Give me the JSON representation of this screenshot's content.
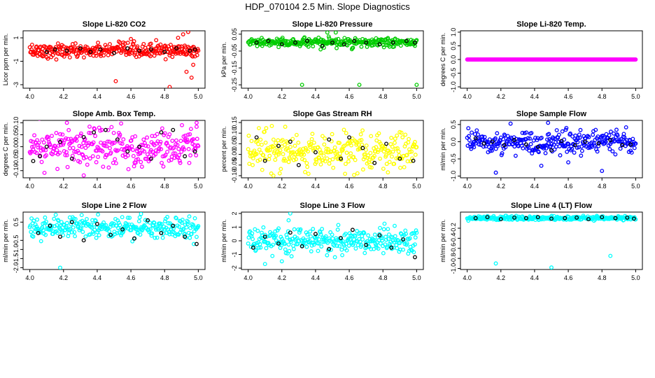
{
  "title": "HDP_070104  2.5 Min. Slope Diagnostics",
  "colors": {
    "highlight": "#000000",
    "frame": "#000000"
  },
  "chart_data": [
    {
      "type": "scatter",
      "title": "Slope Li-820 CO2",
      "ylabel": "Licor ppm per min.",
      "xlabel": "",
      "xlim": [
        4.0,
        5.0
      ],
      "ylim": [
        -3.3,
        1.6
      ],
      "xticks": [
        "4.0",
        "4.2",
        "4.4",
        "4.6",
        "4.8",
        "5.0"
      ],
      "yticks": [
        {
          "v": 1,
          "label": "1"
        },
        {
          "v": -1,
          "label": "-1"
        },
        {
          "v": -3,
          "label": "-3"
        }
      ],
      "series_color": "#ff0000",
      "n_points": 300,
      "center": -0.1,
      "spread": 0.3,
      "outliers": [
        [
          4.51,
          -2.7
        ],
        [
          4.83,
          -3.2
        ],
        [
          4.96,
          -2.4
        ],
        [
          4.93,
          -1.9
        ],
        [
          4.91,
          1.3
        ],
        [
          4.94,
          1.5
        ],
        [
          4.88,
          1.0
        ],
        [
          4.97,
          -1.3
        ],
        [
          4.6,
          0.9
        ],
        [
          4.75,
          0.8
        ]
      ],
      "black_points": [
        [
          4.1,
          -0.2
        ],
        [
          4.15,
          0.0
        ],
        [
          4.22,
          -0.1
        ],
        [
          4.3,
          0.1
        ],
        [
          4.36,
          -0.2
        ],
        [
          4.42,
          0.0
        ],
        [
          4.5,
          -0.3
        ],
        [
          4.58,
          0.1
        ],
        [
          4.65,
          -0.1
        ],
        [
          4.72,
          0.0
        ],
        [
          4.8,
          -0.2
        ],
        [
          4.87,
          0.1
        ],
        [
          4.95,
          -0.1
        ],
        [
          4.98,
          0.0
        ]
      ]
    },
    {
      "type": "scatter",
      "title": "Slope Li-820 Pressure",
      "ylabel": "kPa per min.",
      "xlabel": "",
      "xlim": [
        4.0,
        5.0
      ],
      "ylim": [
        -0.27,
        0.07
      ],
      "xticks": [
        "4.0",
        "4.2",
        "4.4",
        "4.6",
        "4.8",
        "5.0"
      ],
      "yticks": [
        {
          "v": 0.05,
          "label": "0.05"
        },
        {
          "v": -0.05,
          "label": "-0.05"
        },
        {
          "v": -0.15,
          "label": "-0.15"
        },
        {
          "v": -0.25,
          "label": "-0.25"
        }
      ],
      "series_color": "#00cc00",
      "n_points": 300,
      "center": 0.0,
      "spread": 0.012,
      "outliers": [
        [
          4.32,
          -0.25
        ],
        [
          4.66,
          -0.25
        ],
        [
          5.0,
          -0.25
        ],
        [
          4.47,
          0.06
        ],
        [
          4.52,
          0.06
        ],
        [
          4.43,
          -0.04
        ],
        [
          4.45,
          -0.03
        ]
      ],
      "black_points": [
        [
          4.05,
          0.0
        ],
        [
          4.12,
          0.01
        ],
        [
          4.2,
          -0.01
        ],
        [
          4.28,
          0.0
        ],
        [
          4.35,
          0.01
        ],
        [
          4.44,
          -0.02
        ],
        [
          4.5,
          0.0
        ],
        [
          4.57,
          -0.01
        ],
        [
          4.63,
          0.01
        ],
        [
          4.7,
          0.0
        ],
        [
          4.78,
          -0.01
        ],
        [
          4.86,
          0.0
        ],
        [
          4.94,
          0.01
        ],
        [
          4.99,
          0.0
        ]
      ]
    },
    {
      "type": "scatter",
      "title": "Slope Li-820 Temp.",
      "ylabel": "degrees C per min.",
      "xlabel": "",
      "xlim": [
        4.0,
        5.0
      ],
      "ylim": [
        -1.05,
        1.05
      ],
      "xticks": [
        "4.0",
        "4.2",
        "4.4",
        "4.6",
        "4.8",
        "5.0"
      ],
      "yticks": [
        {
          "v": 1,
          "label": "1.0"
        },
        {
          "v": 0.5,
          "label": "0.5"
        },
        {
          "v": 0,
          "label": "0.0"
        },
        {
          "v": -0.5,
          "label": "-0.5"
        },
        {
          "v": -1,
          "label": "-1.0"
        }
      ],
      "series_color": "#ff00ff",
      "n_points": 300,
      "center": 0.0,
      "spread": 0.0,
      "outliers": [],
      "black_points": []
    },
    {
      "type": "scatter",
      "title": "Slope Amb. Box Temp.",
      "ylabel": "degrees C per min.",
      "xlabel": "",
      "xlim": [
        4.0,
        5.0
      ],
      "ylim": [
        -0.13,
        0.11
      ],
      "xticks": [
        "4.0",
        "4.2",
        "4.4",
        "4.6",
        "4.8",
        "5.0"
      ],
      "yticks": [
        {
          "v": 0.1,
          "label": "0.10"
        },
        {
          "v": 0.05,
          "label": "0.05"
        },
        {
          "v": 0,
          "label": "0.00"
        },
        {
          "v": -0.05,
          "label": "-0.05"
        },
        {
          "v": -0.1,
          "label": "-0.10"
        }
      ],
      "series_color": "#ff00ff",
      "n_points": 300,
      "center": 0.0,
      "spread": 0.04,
      "outliers": [
        [
          4.32,
          -0.12
        ],
        [
          4.22,
          0.1
        ],
        [
          4.99,
          0.1
        ]
      ],
      "black_points": [
        [
          4.02,
          -0.06
        ],
        [
          4.06,
          -0.04
        ],
        [
          4.1,
          0.0
        ],
        [
          4.18,
          0.02
        ],
        [
          4.25,
          -0.05
        ],
        [
          4.32,
          0.04
        ],
        [
          4.38,
          0.06
        ],
        [
          4.45,
          0.07
        ],
        [
          4.52,
          0.03
        ],
        [
          4.58,
          -0.02
        ],
        [
          4.65,
          0.0
        ],
        [
          4.72,
          -0.05
        ],
        [
          4.78,
          0.06
        ],
        [
          4.85,
          0.07
        ],
        [
          4.92,
          -0.04
        ],
        [
          4.98,
          -0.02
        ]
      ]
    },
    {
      "type": "scatter",
      "title": "Slope Gas Stream RH",
      "ylabel": "percent per min.",
      "xlabel": "",
      "xlim": [
        4.0,
        5.0
      ],
      "ylim": [
        -0.11,
        0.16
      ],
      "xticks": [
        "4.0",
        "4.2",
        "4.4",
        "4.6",
        "4.8",
        "5.0"
      ],
      "yticks": [
        {
          "v": 0.15,
          "label": "0.15"
        },
        {
          "v": 0.1,
          "label": "0.10"
        },
        {
          "v": 0.05,
          "label": "0.05"
        },
        {
          "v": 0,
          "label": "0.00"
        },
        {
          "v": -0.05,
          "label": "-0.05"
        },
        {
          "v": -0.1,
          "label": "-0.10"
        }
      ],
      "series_color": "#ffff00",
      "n_points": 300,
      "center": 0.01,
      "spread": 0.045,
      "outliers": [
        [
          4.22,
          0.13
        ],
        [
          4.15,
          -0.1
        ]
      ],
      "black_points": [
        [
          4.05,
          0.08
        ],
        [
          4.1,
          -0.03
        ],
        [
          4.18,
          0.04
        ],
        [
          4.25,
          0.06
        ],
        [
          4.3,
          -0.05
        ],
        [
          4.4,
          0.01
        ],
        [
          4.48,
          0.07
        ],
        [
          4.55,
          -0.02
        ],
        [
          4.6,
          0.08
        ],
        [
          4.68,
          0.03
        ],
        [
          4.75,
          -0.04
        ],
        [
          4.82,
          0.05
        ],
        [
          4.9,
          -0.02
        ],
        [
          4.98,
          -0.03
        ]
      ]
    },
    {
      "type": "scatter",
      "title": "Slope Sample Flow",
      "ylabel": "ml/min per min.",
      "xlabel": "",
      "xlim": [
        4.0,
        5.0
      ],
      "ylim": [
        -1.05,
        0.62
      ],
      "xticks": [
        "4.0",
        "4.2",
        "4.4",
        "4.6",
        "4.8",
        "5.0"
      ],
      "yticks": [
        {
          "v": 0.5,
          "label": "0.5"
        },
        {
          "v": 0,
          "label": "0.0"
        },
        {
          "v": -0.5,
          "label": "-0.5"
        },
        {
          "v": -1,
          "label": "-1.0"
        }
      ],
      "series_color": "#0000ff",
      "n_points": 300,
      "center": 0.0,
      "spread": 0.18,
      "outliers": [
        [
          4.48,
          0.55
        ],
        [
          4.17,
          -0.9
        ],
        [
          4.44,
          -0.7
        ],
        [
          4.8,
          -0.85
        ],
        [
          4.6,
          -0.6
        ]
      ],
      "black_points": [
        [
          4.05,
          0.1
        ],
        [
          4.1,
          -0.05
        ],
        [
          4.15,
          0.0
        ],
        [
          4.22,
          -0.1
        ],
        [
          4.28,
          0.05
        ],
        [
          4.35,
          -0.08
        ],
        [
          4.42,
          -0.15
        ],
        [
          4.5,
          -0.25
        ],
        [
          4.56,
          0.02
        ],
        [
          4.64,
          -0.1
        ],
        [
          4.7,
          0.0
        ],
        [
          4.78,
          -0.05
        ],
        [
          4.85,
          0.05
        ],
        [
          4.92,
          -0.1
        ],
        [
          4.97,
          -0.08
        ]
      ]
    },
    {
      "type": "scatter",
      "title": "Slope Line 2 Flow",
      "ylabel": "ml/min per min.",
      "xlabel": "",
      "xlim": [
        4.0,
        5.0
      ],
      "ylim": [
        -2.1,
        1.05
      ],
      "xticks": [
        "4.0",
        "4.2",
        "4.4",
        "4.6",
        "4.8",
        "5.0"
      ],
      "yticks": [
        {
          "v": 0.5,
          "label": "0.5"
        },
        {
          "v": -0.5,
          "label": "-0.5"
        },
        {
          "v": -1,
          "label": "-1.0"
        },
        {
          "v": -1.5,
          "label": "-1.5"
        },
        {
          "v": -2,
          "label": "-2.0"
        }
      ],
      "series_color": "#00ffff",
      "n_points": 300,
      "center": 0.2,
      "spread": 0.3,
      "outliers": [
        [
          4.18,
          -2.0
        ],
        [
          4.66,
          0.95
        ]
      ],
      "black_points": [
        [
          4.05,
          -0.1
        ],
        [
          4.12,
          0.3
        ],
        [
          4.18,
          -0.3
        ],
        [
          4.25,
          0.5
        ],
        [
          4.32,
          -0.5
        ],
        [
          4.4,
          0.4
        ],
        [
          4.48,
          -0.2
        ],
        [
          4.55,
          0.1
        ],
        [
          4.62,
          -0.4
        ],
        [
          4.7,
          0.6
        ],
        [
          4.78,
          -0.1
        ],
        [
          4.85,
          0.3
        ],
        [
          4.92,
          -0.3
        ],
        [
          4.99,
          -0.7
        ]
      ]
    },
    {
      "type": "scatter",
      "title": "Slope Line 3 Flow",
      "ylabel": "ml/min per min.",
      "xlabel": "",
      "xlim": [
        4.0,
        5.0
      ],
      "ylim": [
        -2.1,
        2.1
      ],
      "xticks": [
        "4.0",
        "4.2",
        "4.4",
        "4.6",
        "4.8",
        "5.0"
      ],
      "yticks": [
        {
          "v": 2,
          "label": "2"
        },
        {
          "v": 1,
          "label": "1"
        },
        {
          "v": 0,
          "label": "0"
        },
        {
          "v": -1,
          "label": "-1"
        },
        {
          "v": -2,
          "label": "-2"
        }
      ],
      "series_color": "#00ffff",
      "n_points": 300,
      "center": 0.0,
      "spread": 0.45,
      "outliers": [
        [
          4.25,
          2.0
        ],
        [
          4.1,
          -1.7
        ],
        [
          4.2,
          -1.5
        ],
        [
          4.24,
          1.5
        ]
      ],
      "black_points": [
        [
          4.03,
          -0.5
        ],
        [
          4.1,
          0.3
        ],
        [
          4.18,
          -0.2
        ],
        [
          4.25,
          0.6
        ],
        [
          4.32,
          -0.4
        ],
        [
          4.4,
          0.5
        ],
        [
          4.48,
          -0.6
        ],
        [
          4.55,
          0.2
        ],
        [
          4.62,
          0.8
        ],
        [
          4.7,
          -0.3
        ],
        [
          4.78,
          0.4
        ],
        [
          4.85,
          -0.5
        ],
        [
          4.92,
          0.1
        ],
        [
          4.99,
          -1.2
        ]
      ]
    },
    {
      "type": "scatter",
      "title": "Slope Line 4 (LT) Flow",
      "ylabel": "ml/min per min.",
      "xlabel": "",
      "xlim": [
        4.0,
        5.0
      ],
      "ylim": [
        -1.02,
        0.12
      ],
      "xticks": [
        "4.0",
        "4.2",
        "4.4",
        "4.6",
        "4.8",
        "5.0"
      ],
      "yticks": [
        {
          "v": -0.2,
          "label": "-0.2"
        },
        {
          "v": -0.4,
          "label": "-0.4"
        },
        {
          "v": -0.6,
          "label": "-0.6"
        },
        {
          "v": -0.8,
          "label": "-0.8"
        },
        {
          "v": -1,
          "label": "-1.0"
        }
      ],
      "series_color": "#00ffff",
      "n_points": 300,
      "center": 0.0,
      "spread": 0.02,
      "outliers": [
        [
          4.17,
          -0.9
        ],
        [
          4.5,
          -0.98
        ],
        [
          4.85,
          -0.75
        ]
      ],
      "black_points": [
        [
          4.05,
          0.0
        ],
        [
          4.12,
          0.02
        ],
        [
          4.2,
          -0.02
        ],
        [
          4.28,
          0.01
        ],
        [
          4.35,
          0.0
        ],
        [
          4.42,
          0.02
        ],
        [
          4.5,
          -0.01
        ],
        [
          4.58,
          0.0
        ],
        [
          4.65,
          0.01
        ],
        [
          4.72,
          -0.02
        ],
        [
          4.8,
          0.02
        ],
        [
          4.88,
          0.0
        ],
        [
          4.95,
          0.01
        ],
        [
          4.99,
          -0.01
        ]
      ]
    }
  ]
}
